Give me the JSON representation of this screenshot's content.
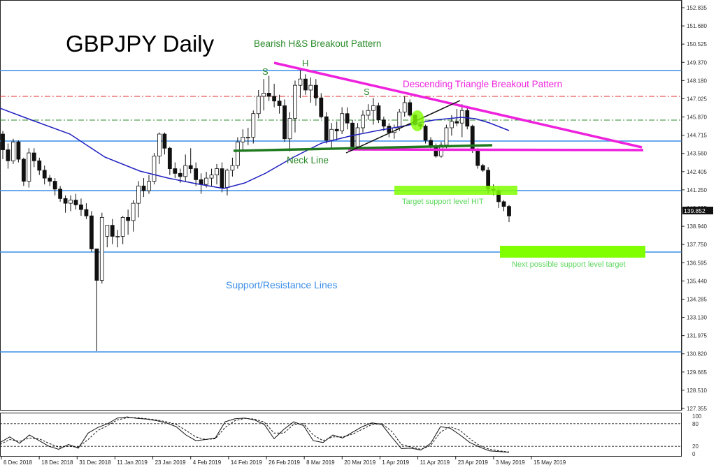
{
  "chart_data": {
    "type": "candlestick",
    "title": "GBPJPY Daily",
    "symbol": "GBPJPY",
    "timeframe": "Daily",
    "current_price": "139.852",
    "y_axis": {
      "ticks": [
        "152.835",
        "151.680",
        "150.525",
        "149.370",
        "148.180",
        "147.025",
        "145.870",
        "144.715",
        "143.560",
        "142.405",
        "141.250",
        "140.095",
        "138.940",
        "137.750",
        "136.595",
        "135.440",
        "134.285",
        "133.130",
        "131.975",
        "130.820",
        "129.665",
        "128.510",
        "127.355"
      ],
      "ylim": [
        127.355,
        152.835
      ]
    },
    "x_axis": {
      "ticks": [
        "6 Dec 2018",
        "18 Dec 2018",
        "31 Dec 2018",
        "11 Jan 2019",
        "23 Jan 2019",
        "4 Feb 2019",
        "14 Feb 2019",
        "26 Feb 2019",
        "8 Mar 2019",
        "20 Mar 2019",
        "1 Apr 2019",
        "11 Apr 2019",
        "23 Apr 2019",
        "3 May 2019",
        "15 May 2019"
      ]
    },
    "annotations": {
      "hs_pattern": "Bearish H&S Breakout Pattern",
      "triangle_pattern": "Descending Triangle Breakout Pattern",
      "left_shoulder": "S",
      "head": "H",
      "right_shoulder": "S",
      "neck_line": "Neck Line",
      "target_hit": "Target support level HIT",
      "next_target": "Next possible support level target",
      "sr_lines": "Support/Resistance Lines"
    },
    "support_resistance_levels": [
      149.0,
      144.35,
      141.25,
      137.25,
      130.95
    ],
    "dashed_levels": [
      {
        "value": 147.1,
        "color": "#e03030"
      },
      {
        "value": 145.85,
        "color": "#2a8a2a"
      }
    ],
    "colors": {
      "sr_line": "#3b8ee8",
      "ma_line": "#2020c0",
      "triangle": "#ee22dd",
      "neckline": "#1f7a1f",
      "hs_text": "#2a8a2a",
      "target_box": "#7fff00",
      "target_text": "#5cd65c",
      "sr_text": "#3b8ee8"
    },
    "oscillator": {
      "name": "Stochastic",
      "levels": [
        80,
        20
      ],
      "scale_labels": [
        "100",
        "80",
        "20",
        "0"
      ],
      "main": [
        30,
        45,
        28,
        50,
        35,
        20,
        12,
        25,
        15,
        55,
        70,
        80,
        95,
        98,
        94,
        92,
        88,
        82,
        72,
        50,
        35,
        38,
        42,
        85,
        93,
        95,
        90,
        78,
        40,
        65,
        85,
        75,
        35,
        30,
        50,
        42,
        57,
        72,
        82,
        78,
        45,
        14,
        15,
        10,
        28,
        72,
        68,
        50,
        30,
        18,
        8,
        6,
        4
      ],
      "signal": [
        25,
        38,
        33,
        42,
        40,
        28,
        18,
        20,
        18,
        38,
        62,
        75,
        90,
        96,
        96,
        93,
        90,
        85,
        78,
        62,
        45,
        38,
        40,
        70,
        88,
        94,
        92,
        84,
        55,
        55,
        78,
        80,
        50,
        35,
        45,
        45,
        52,
        65,
        78,
        80,
        60,
        25,
        18,
        12,
        22,
        58,
        72,
        62,
        40,
        22,
        12,
        8,
        5
      ]
    },
    "candles": [
      [
        144.8,
        145.0,
        143.2,
        143.8
      ],
      [
        143.8,
        144.2,
        142.6,
        143.1
      ],
      [
        143.1,
        144.5,
        142.9,
        144.3
      ],
      [
        144.3,
        144.4,
        143.0,
        143.2
      ],
      [
        143.2,
        143.3,
        141.5,
        141.8
      ],
      [
        141.8,
        143.9,
        141.4,
        143.6
      ],
      [
        143.6,
        143.9,
        142.7,
        143.1
      ],
      [
        143.1,
        143.3,
        142.2,
        142.5
      ],
      [
        142.5,
        142.8,
        141.6,
        142.0
      ],
      [
        142.0,
        142.2,
        141.5,
        141.8
      ],
      [
        141.8,
        142.0,
        140.9,
        141.3
      ],
      [
        141.3,
        141.5,
        140.5,
        140.7
      ],
      [
        140.7,
        140.9,
        139.8,
        140.4
      ],
      [
        140.4,
        140.9,
        139.9,
        140.6
      ],
      [
        140.6,
        141.0,
        140.0,
        140.3
      ],
      [
        140.3,
        140.7,
        139.6,
        140.0
      ],
      [
        140.0,
        140.4,
        139.4,
        139.6
      ],
      [
        139.6,
        139.9,
        137.3,
        137.5
      ],
      [
        137.5,
        137.5,
        131.0,
        135.5
      ],
      [
        135.5,
        139.8,
        135.3,
        139.5
      ],
      [
        138.3,
        139.0,
        137.6,
        139.0
      ],
      [
        139.0,
        139.4,
        137.8,
        138.3
      ],
      [
        138.3,
        138.7,
        137.6,
        138.3
      ],
      [
        138.3,
        139.6,
        137.8,
        139.5
      ],
      [
        139.5,
        140.0,
        138.4,
        139.3
      ],
      [
        139.3,
        140.6,
        138.6,
        140.4
      ],
      [
        140.4,
        141.8,
        139.5,
        141.5
      ],
      [
        141.5,
        142.0,
        140.8,
        141.2
      ],
      [
        141.2,
        142.2,
        141.0,
        141.8
      ],
      [
        141.8,
        143.6,
        141.6,
        143.4
      ],
      [
        143.4,
        144.9,
        142.9,
        144.8
      ],
      [
        144.8,
        144.9,
        143.5,
        143.9
      ],
      [
        143.9,
        144.0,
        142.2,
        142.6
      ],
      [
        142.6,
        143.0,
        142.0,
        142.3
      ],
      [
        142.3,
        142.6,
        141.7,
        142.1
      ],
      [
        142.1,
        143.5,
        141.8,
        142.8
      ],
      [
        142.8,
        143.9,
        142.3,
        142.6
      ],
      [
        142.6,
        143.0,
        141.5,
        141.9
      ],
      [
        141.9,
        142.3,
        141.0,
        141.6
      ],
      [
        141.6,
        142.4,
        141.4,
        142.0
      ],
      [
        142.0,
        142.6,
        141.5,
        142.2
      ],
      [
        142.2,
        142.9,
        141.6,
        142.6
      ],
      [
        142.6,
        143.0,
        141.1,
        141.4
      ],
      [
        141.4,
        142.6,
        140.9,
        142.5
      ],
      [
        142.5,
        143.3,
        142.1,
        142.8
      ],
      [
        142.8,
        144.6,
        142.6,
        144.3
      ],
      [
        144.3,
        145.1,
        143.8,
        144.6
      ],
      [
        144.6,
        145.2,
        144.1,
        144.6
      ],
      [
        144.6,
        146.3,
        144.2,
        146.1
      ],
      [
        146.1,
        147.6,
        145.8,
        147.2
      ],
      [
        147.2,
        148.3,
        146.3,
        147.4
      ],
      [
        147.4,
        148.5,
        146.9,
        147.2
      ],
      [
        147.2,
        148.0,
        146.5,
        146.9
      ],
      [
        146.9,
        147.3,
        146.1,
        146.6
      ],
      [
        146.6,
        147.0,
        144.3,
        144.5
      ],
      [
        144.5,
        146.2,
        143.7,
        145.8
      ],
      [
        145.8,
        148.2,
        144.9,
        147.9
      ],
      [
        147.9,
        149.0,
        147.1,
        148.3
      ],
      [
        148.3,
        148.6,
        147.3,
        147.6
      ],
      [
        147.6,
        148.4,
        146.8,
        147.9
      ],
      [
        147.9,
        148.3,
        146.6,
        147.1
      ],
      [
        147.1,
        147.4,
        145.8,
        145.9
      ],
      [
        145.9,
        146.2,
        144.2,
        144.4
      ],
      [
        144.4,
        145.5,
        143.9,
        145.1
      ],
      [
        145.1,
        145.6,
        144.4,
        145.0
      ],
      [
        145.0,
        146.5,
        144.8,
        146.1
      ],
      [
        146.1,
        146.5,
        145.1,
        145.5
      ],
      [
        145.5,
        145.7,
        143.8,
        144.0
      ],
      [
        144.0,
        145.5,
        143.8,
        145.2
      ],
      [
        145.2,
        146.3,
        144.9,
        146.0
      ],
      [
        146.0,
        146.7,
        145.7,
        146.3
      ],
      [
        146.3,
        147.1,
        145.4,
        146.6
      ],
      [
        146.6,
        146.8,
        145.5,
        145.7
      ],
      [
        145.7,
        145.9,
        145.0,
        145.3
      ],
      [
        145.3,
        145.5,
        144.6,
        144.9
      ],
      [
        144.9,
        145.4,
        144.5,
        145.2
      ],
      [
        145.2,
        146.4,
        145.0,
        146.2
      ],
      [
        146.2,
        147.2,
        145.9,
        146.8
      ],
      [
        146.8,
        147.0,
        145.9,
        146.0
      ],
      [
        146.0,
        146.1,
        145.3,
        145.4
      ],
      [
        145.4,
        145.6,
        145.1,
        145.3
      ],
      [
        145.3,
        145.4,
        144.2,
        144.4
      ],
      [
        144.4,
        144.6,
        143.9,
        144.0
      ],
      [
        144.0,
        144.2,
        143.3,
        143.4
      ],
      [
        143.4,
        144.3,
        143.3,
        144.1
      ],
      [
        144.1,
        145.4,
        143.9,
        145.2
      ],
      [
        145.2,
        146.0,
        144.7,
        145.6
      ],
      [
        145.6,
        146.4,
        145.3,
        145.5
      ],
      [
        145.5,
        146.7,
        144.6,
        146.3
      ],
      [
        146.3,
        146.5,
        145.1,
        145.3
      ],
      [
        145.3,
        145.4,
        143.6,
        143.8
      ],
      [
        143.8,
        143.9,
        142.6,
        142.8
      ],
      [
        142.8,
        142.9,
        142.4,
        142.5
      ],
      [
        142.5,
        142.7,
        141.0,
        141.3
      ],
      [
        141.3,
        141.6,
        140.9,
        141.2
      ],
      [
        141.2,
        141.4,
        140.1,
        140.5
      ],
      [
        140.5,
        140.6,
        139.9,
        140.2
      ],
      [
        140.2,
        140.3,
        139.2,
        139.6
      ]
    ]
  }
}
